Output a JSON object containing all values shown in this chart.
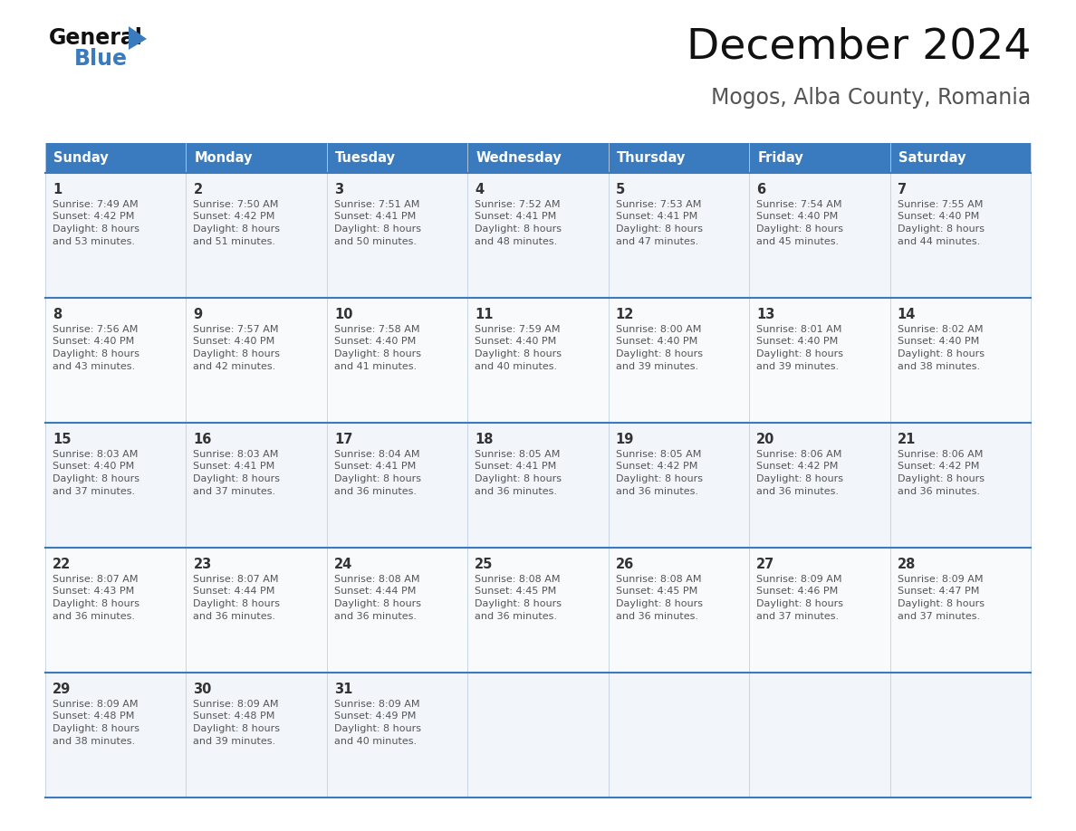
{
  "title": "December 2024",
  "subtitle": "Mogos, Alba County, Romania",
  "header_bg_color": "#3a7bbf",
  "header_text_color": "#ffffff",
  "cell_bg_color": "#f2f6fb",
  "border_color": "#3a7bbf",
  "day_names": [
    "Sunday",
    "Monday",
    "Tuesday",
    "Wednesday",
    "Thursday",
    "Friday",
    "Saturday"
  ],
  "days": [
    {
      "day": 1,
      "col": 0,
      "row": 0,
      "sunrise": "7:49 AM",
      "sunset": "4:42 PM",
      "daylight_min": "53"
    },
    {
      "day": 2,
      "col": 1,
      "row": 0,
      "sunrise": "7:50 AM",
      "sunset": "4:42 PM",
      "daylight_min": "51"
    },
    {
      "day": 3,
      "col": 2,
      "row": 0,
      "sunrise": "7:51 AM",
      "sunset": "4:41 PM",
      "daylight_min": "50"
    },
    {
      "day": 4,
      "col": 3,
      "row": 0,
      "sunrise": "7:52 AM",
      "sunset": "4:41 PM",
      "daylight_min": "48"
    },
    {
      "day": 5,
      "col": 4,
      "row": 0,
      "sunrise": "7:53 AM",
      "sunset": "4:41 PM",
      "daylight_min": "47"
    },
    {
      "day": 6,
      "col": 5,
      "row": 0,
      "sunrise": "7:54 AM",
      "sunset": "4:40 PM",
      "daylight_min": "45"
    },
    {
      "day": 7,
      "col": 6,
      "row": 0,
      "sunrise": "7:55 AM",
      "sunset": "4:40 PM",
      "daylight_min": "44"
    },
    {
      "day": 8,
      "col": 0,
      "row": 1,
      "sunrise": "7:56 AM",
      "sunset": "4:40 PM",
      "daylight_min": "43"
    },
    {
      "day": 9,
      "col": 1,
      "row": 1,
      "sunrise": "7:57 AM",
      "sunset": "4:40 PM",
      "daylight_min": "42"
    },
    {
      "day": 10,
      "col": 2,
      "row": 1,
      "sunrise": "7:58 AM",
      "sunset": "4:40 PM",
      "daylight_min": "41"
    },
    {
      "day": 11,
      "col": 3,
      "row": 1,
      "sunrise": "7:59 AM",
      "sunset": "4:40 PM",
      "daylight_min": "40"
    },
    {
      "day": 12,
      "col": 4,
      "row": 1,
      "sunrise": "8:00 AM",
      "sunset": "4:40 PM",
      "daylight_min": "39"
    },
    {
      "day": 13,
      "col": 5,
      "row": 1,
      "sunrise": "8:01 AM",
      "sunset": "4:40 PM",
      "daylight_min": "39"
    },
    {
      "day": 14,
      "col": 6,
      "row": 1,
      "sunrise": "8:02 AM",
      "sunset": "4:40 PM",
      "daylight_min": "38"
    },
    {
      "day": 15,
      "col": 0,
      "row": 2,
      "sunrise": "8:03 AM",
      "sunset": "4:40 PM",
      "daylight_min": "37"
    },
    {
      "day": 16,
      "col": 1,
      "row": 2,
      "sunrise": "8:03 AM",
      "sunset": "4:41 PM",
      "daylight_min": "37"
    },
    {
      "day": 17,
      "col": 2,
      "row": 2,
      "sunrise": "8:04 AM",
      "sunset": "4:41 PM",
      "daylight_min": "36"
    },
    {
      "day": 18,
      "col": 3,
      "row": 2,
      "sunrise": "8:05 AM",
      "sunset": "4:41 PM",
      "daylight_min": "36"
    },
    {
      "day": 19,
      "col": 4,
      "row": 2,
      "sunrise": "8:05 AM",
      "sunset": "4:42 PM",
      "daylight_min": "36"
    },
    {
      "day": 20,
      "col": 5,
      "row": 2,
      "sunrise": "8:06 AM",
      "sunset": "4:42 PM",
      "daylight_min": "36"
    },
    {
      "day": 21,
      "col": 6,
      "row": 2,
      "sunrise": "8:06 AM",
      "sunset": "4:42 PM",
      "daylight_min": "36"
    },
    {
      "day": 22,
      "col": 0,
      "row": 3,
      "sunrise": "8:07 AM",
      "sunset": "4:43 PM",
      "daylight_min": "36"
    },
    {
      "day": 23,
      "col": 1,
      "row": 3,
      "sunrise": "8:07 AM",
      "sunset": "4:44 PM",
      "daylight_min": "36"
    },
    {
      "day": 24,
      "col": 2,
      "row": 3,
      "sunrise": "8:08 AM",
      "sunset": "4:44 PM",
      "daylight_min": "36"
    },
    {
      "day": 25,
      "col": 3,
      "row": 3,
      "sunrise": "8:08 AM",
      "sunset": "4:45 PM",
      "daylight_min": "36"
    },
    {
      "day": 26,
      "col": 4,
      "row": 3,
      "sunrise": "8:08 AM",
      "sunset": "4:45 PM",
      "daylight_min": "36"
    },
    {
      "day": 27,
      "col": 5,
      "row": 3,
      "sunrise": "8:09 AM",
      "sunset": "4:46 PM",
      "daylight_min": "37"
    },
    {
      "day": 28,
      "col": 6,
      "row": 3,
      "sunrise": "8:09 AM",
      "sunset": "4:47 PM",
      "daylight_min": "37"
    },
    {
      "day": 29,
      "col": 0,
      "row": 4,
      "sunrise": "8:09 AM",
      "sunset": "4:48 PM",
      "daylight_min": "38"
    },
    {
      "day": 30,
      "col": 1,
      "row": 4,
      "sunrise": "8:09 AM",
      "sunset": "4:48 PM",
      "daylight_min": "39"
    },
    {
      "day": 31,
      "col": 2,
      "row": 4,
      "sunrise": "8:09 AM",
      "sunset": "4:49 PM",
      "daylight_min": "40"
    }
  ],
  "num_rows": 5,
  "fig_width": 11.88,
  "fig_height": 9.18,
  "fig_dpi": 100
}
